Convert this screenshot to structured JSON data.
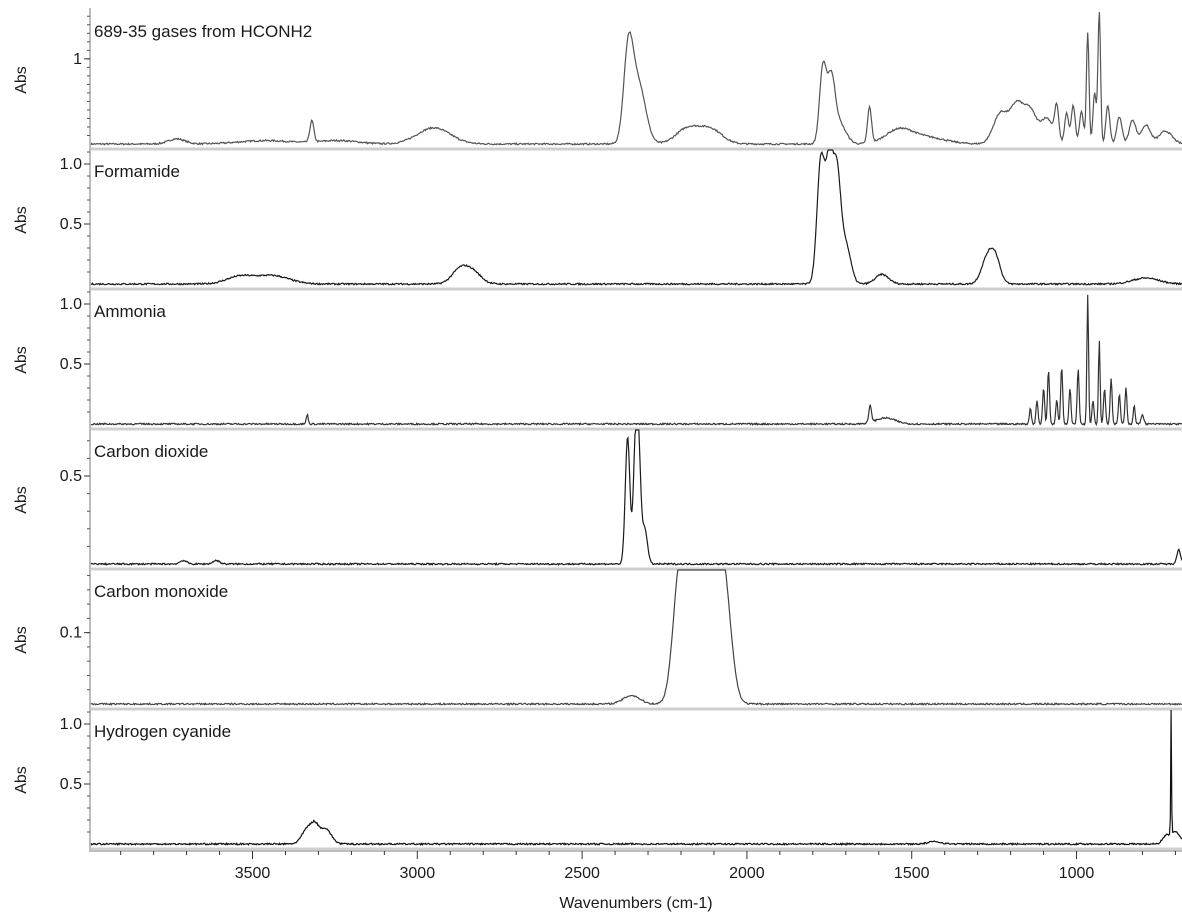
{
  "chart_data": {
    "type": "line",
    "xlabel": "Wavenumbers (cm-1)",
    "xlim": [
      3990,
      680
    ],
    "xticks": [
      3500,
      3000,
      2500,
      2000,
      1500,
      1000
    ],
    "x_tick_labels": [
      "3500",
      "3000",
      "2500",
      "2000",
      "1500",
      "1000"
    ],
    "panels": [
      {
        "name": "689-35 gases from HCONH2",
        "ylabel": "Abs",
        "ylim": [
          0,
          1.55
        ],
        "yticks": [
          1
        ],
        "y_tick_labels": [
          "1"
        ],
        "color": "#555555",
        "peaks": [
          [
            3730,
            0.06,
            25
          ],
          [
            3460,
            0.04,
            80
          ],
          [
            3320,
            0.25,
            6
          ],
          [
            3240,
            0.04,
            60
          ],
          [
            2950,
            0.19,
            50
          ],
          [
            2360,
            1.0,
            14
          ],
          [
            2330,
            0.72,
            22
          ],
          [
            2180,
            0.18,
            35
          ],
          [
            2110,
            0.17,
            35
          ],
          [
            1770,
            0.86,
            10
          ],
          [
            1745,
            0.72,
            12
          ],
          [
            1720,
            0.24,
            20
          ],
          [
            1628,
            0.42,
            6
          ],
          [
            1540,
            0.15,
            40
          ],
          [
            1460,
            0.08,
            60
          ],
          [
            1230,
            0.36,
            22
          ],
          [
            1180,
            0.45,
            20
          ],
          [
            1140,
            0.36,
            18
          ],
          [
            1090,
            0.3,
            20
          ],
          [
            1060,
            0.38,
            6
          ],
          [
            1030,
            0.36,
            6
          ],
          [
            1010,
            0.45,
            6
          ],
          [
            985,
            0.38,
            6
          ],
          [
            966,
            1.3,
            4
          ],
          [
            945,
            0.6,
            5
          ],
          [
            931,
            1.55,
            4
          ],
          [
            905,
            0.45,
            6
          ],
          [
            870,
            0.32,
            8
          ],
          [
            830,
            0.28,
            10
          ],
          [
            790,
            0.22,
            14
          ],
          [
            730,
            0.15,
            20
          ]
        ]
      },
      {
        "name": "Formamide",
        "ylabel": "Abs",
        "ylim": [
          0,
          1.1
        ],
        "yticks": [
          0.5,
          1.0
        ],
        "y_tick_labels": [
          "0.5",
          "1.0"
        ],
        "color": "#1a1a1a",
        "peaks": [
          [
            3540,
            0.06,
            40
          ],
          [
            3440,
            0.07,
            50
          ],
          [
            2870,
            0.12,
            25
          ],
          [
            2830,
            0.09,
            25
          ],
          [
            1775,
            1.05,
            12
          ],
          [
            1750,
            0.88,
            10
          ],
          [
            1728,
            0.92,
            12
          ],
          [
            1700,
            0.32,
            15
          ],
          [
            1590,
            0.08,
            20
          ],
          [
            1270,
            0.22,
            18
          ],
          [
            1245,
            0.18,
            15
          ],
          [
            790,
            0.05,
            40
          ]
        ]
      },
      {
        "name": "Ammonia",
        "ylabel": "Abs",
        "ylim": [
          0,
          1.1
        ],
        "yticks": [
          0.5,
          1.0
        ],
        "y_tick_labels": [
          "0.5",
          "1.0"
        ],
        "color": "#333333",
        "peaks": [
          [
            3334,
            0.08,
            3
          ],
          [
            1626,
            0.14,
            4
          ],
          [
            1580,
            0.05,
            30
          ],
          [
            1140,
            0.13,
            3
          ],
          [
            1120,
            0.2,
            3
          ],
          [
            1100,
            0.3,
            3
          ],
          [
            1085,
            0.45,
            3
          ],
          [
            1060,
            0.2,
            3
          ],
          [
            1045,
            0.48,
            3
          ],
          [
            1020,
            0.3,
            3
          ],
          [
            995,
            0.46,
            3
          ],
          [
            966,
            1.08,
            2.5
          ],
          [
            950,
            0.2,
            3
          ],
          [
            931,
            0.7,
            2.5
          ],
          [
            915,
            0.3,
            3
          ],
          [
            895,
            0.38,
            3
          ],
          [
            870,
            0.25,
            3
          ],
          [
            850,
            0.3,
            3
          ],
          [
            825,
            0.15,
            3
          ],
          [
            800,
            0.08,
            4
          ]
        ]
      },
      {
        "name": "Carbon dioxide",
        "ylabel": "Abs",
        "ylim": [
          0,
          0.75
        ],
        "yticks": [
          0.5
        ],
        "y_tick_labels": [
          "0.5"
        ],
        "color": "#1a1a1a",
        "peaks": [
          [
            2362,
            0.72,
            7
          ],
          [
            2340,
            0.45,
            6
          ],
          [
            2330,
            0.73,
            7
          ],
          [
            2310,
            0.2,
            8
          ],
          [
            3610,
            0.02,
            10
          ],
          [
            3710,
            0.02,
            10
          ],
          [
            690,
            0.08,
            6
          ]
        ]
      },
      {
        "name": "Carbon monoxide",
        "ylabel": "Abs",
        "ylim": [
          0,
          0.185
        ],
        "yticks": [
          0.1
        ],
        "y_tick_labels": [
          "0.1"
        ],
        "color": "#444444",
        "peaks": [
          [
            2350,
            0.012,
            25
          ],
          [
            2205,
            0.152,
            20
          ],
          [
            2165,
            0.148,
            28
          ],
          [
            2110,
            0.15,
            28
          ],
          [
            2070,
            0.15,
            22
          ],
          [
            2143,
            0.125,
            8
          ]
        ]
      },
      {
        "name": "Hydrogen cyanide",
        "ylabel": "Abs",
        "ylim": [
          0,
          1.1
        ],
        "yticks": [
          0.5,
          1.0
        ],
        "y_tick_labels": [
          "0.5",
          "1.0"
        ],
        "color": "#111111",
        "peaks": [
          [
            3330,
            0.14,
            18
          ],
          [
            3280,
            0.13,
            18
          ],
          [
            3310,
            0.08,
            10
          ],
          [
            1430,
            0.02,
            20
          ],
          [
            713,
            1.1,
            1.2
          ],
          [
            700,
            0.1,
            15
          ],
          [
            730,
            0.06,
            10
          ]
        ]
      }
    ]
  }
}
